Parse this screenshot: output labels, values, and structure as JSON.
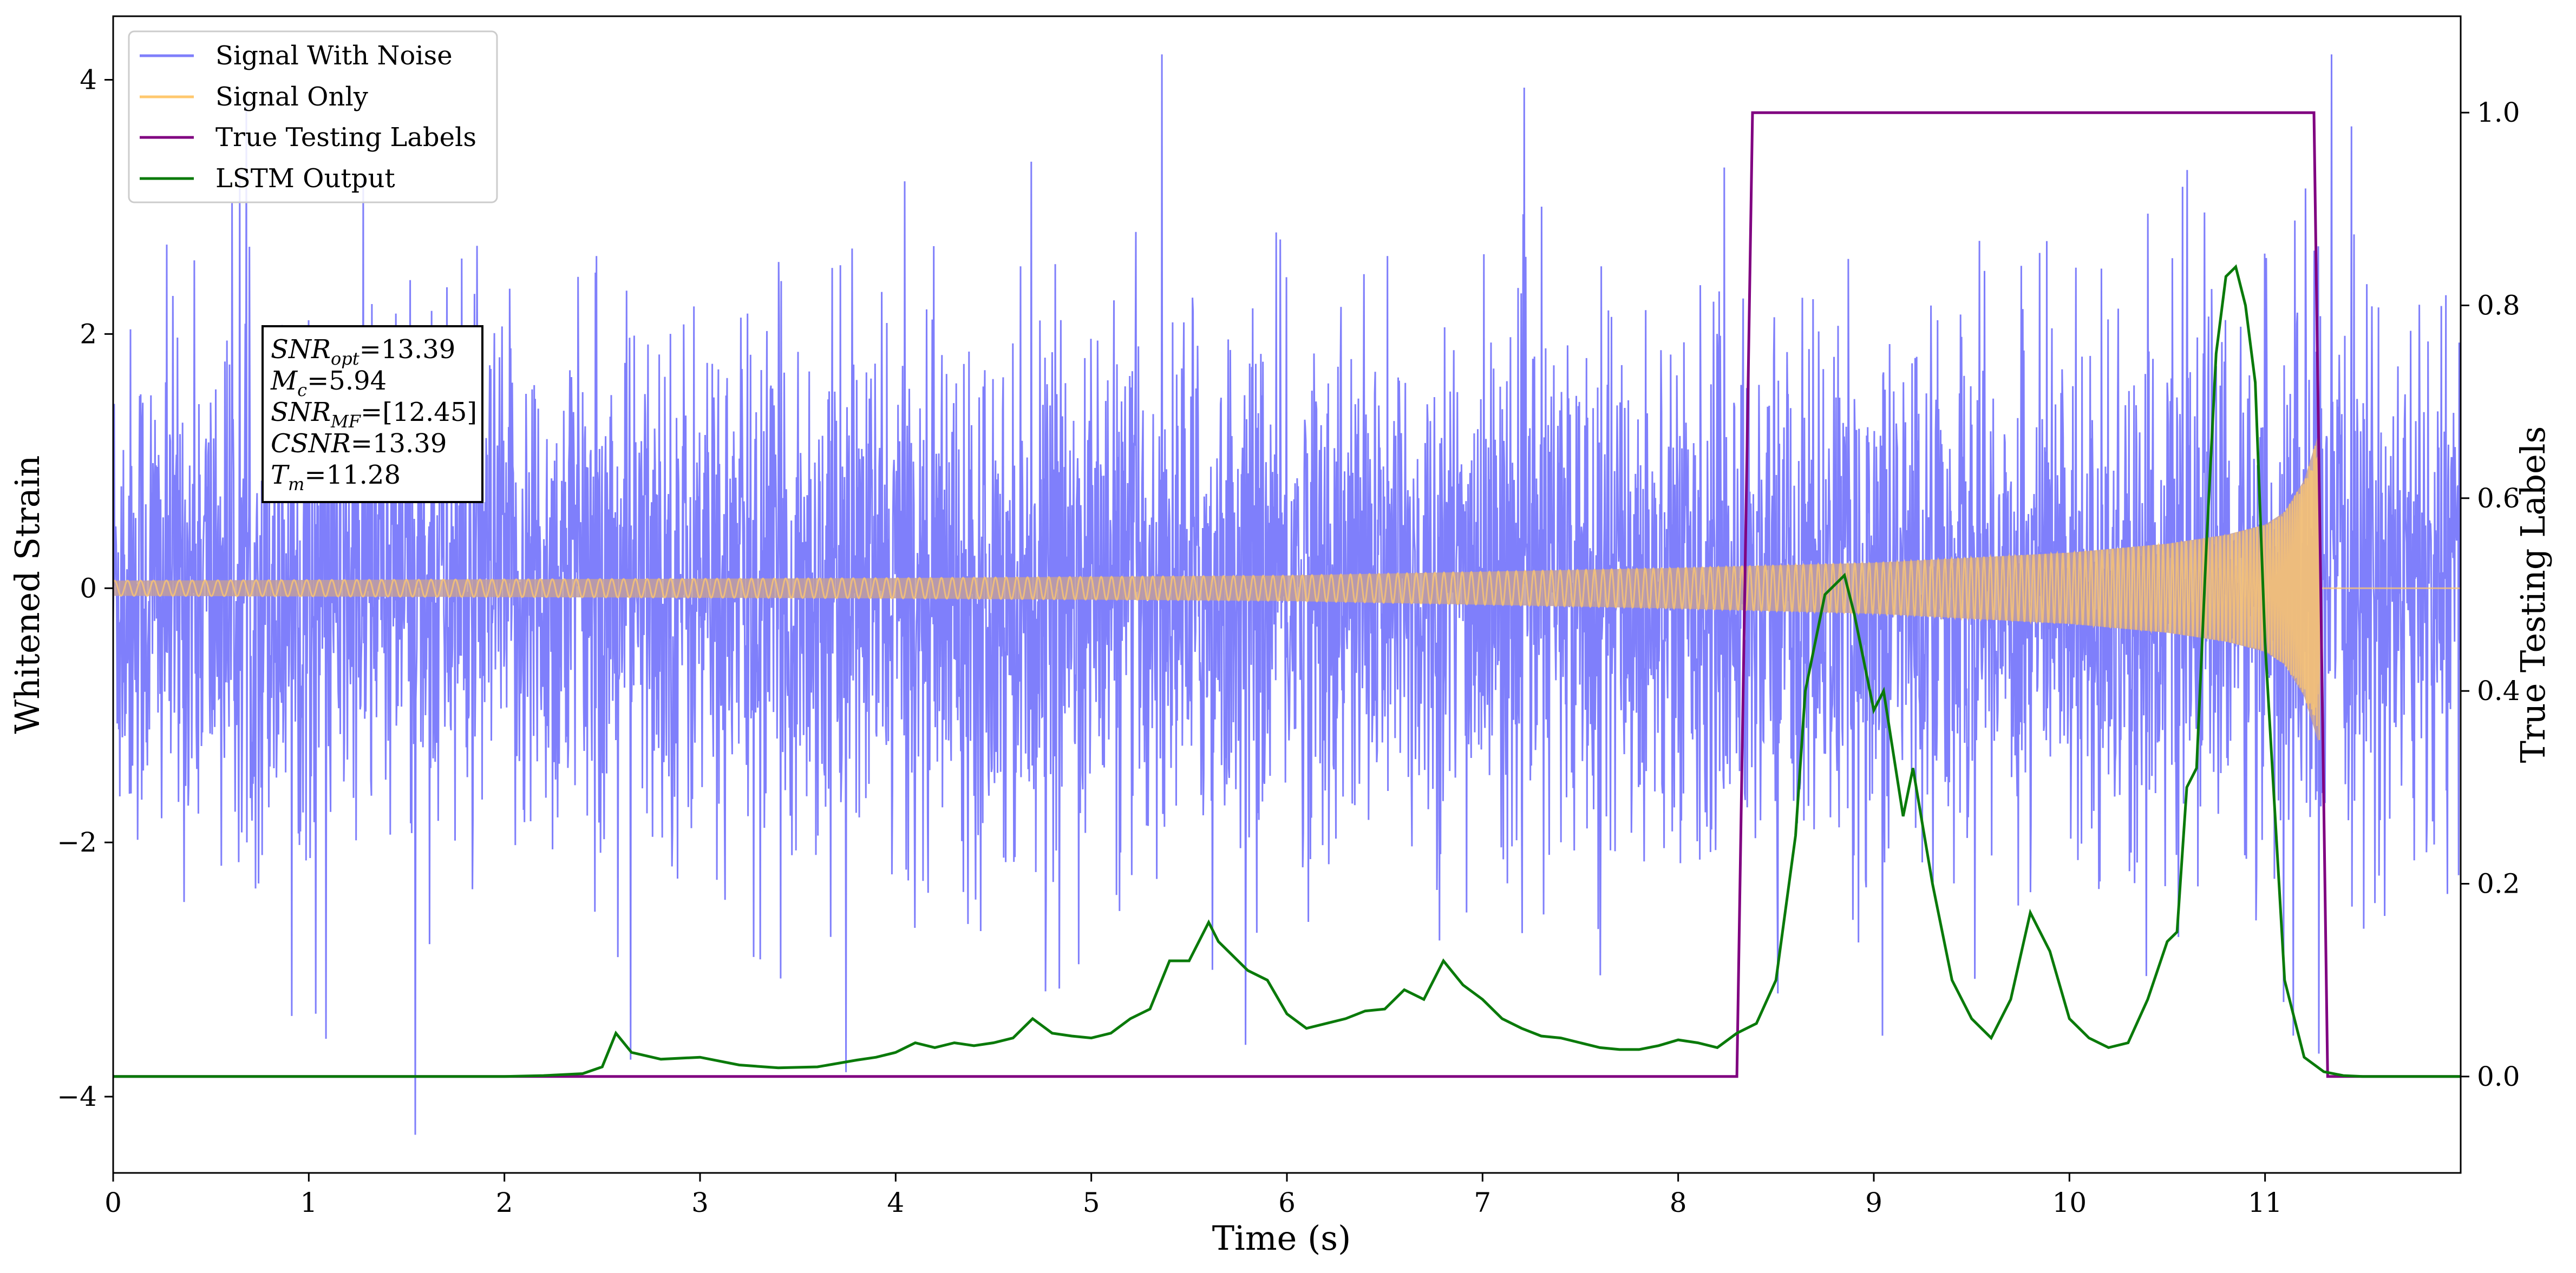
{
  "colors": {
    "signal_with_noise": "#7f7ffb",
    "signal_only": "#ffc86e",
    "overlap": "#c19e9e",
    "true_labels": "#800080",
    "lstm_output": "#0a7a0a"
  },
  "chart_data": {
    "type": "line",
    "title": "",
    "xlabel": "Time (s)",
    "ylabel_left": "Whitened Strain",
    "ylabel_right": "True Testing Labels",
    "xlim": [
      0,
      12
    ],
    "ylim_left": [
      -4.6,
      4.5
    ],
    "ylim_right": [
      -0.1,
      1.1
    ],
    "x_ticks": [
      0,
      1,
      2,
      3,
      4,
      5,
      6,
      7,
      8,
      9,
      10,
      11
    ],
    "x_tick_labels": [
      "0",
      "1",
      "2",
      "3",
      "4",
      "5",
      "6",
      "7",
      "8",
      "9",
      "10",
      "11"
    ],
    "y_left_ticks": [
      -4,
      -2,
      0,
      2,
      4
    ],
    "y_left_tick_labels": [
      "−4",
      "−2",
      "0",
      "2",
      "4"
    ],
    "y_right_ticks": [
      0,
      0.2,
      0.4,
      0.6,
      0.8,
      1.0
    ],
    "y_right_tick_labels": [
      "0.0",
      "0.2",
      "0.4",
      "0.6",
      "0.8",
      "1.0"
    ],
    "grid": false,
    "legend_position": "top-left",
    "legend": [
      "Signal With Noise",
      "Signal Only",
      "True Testing Labels",
      "LSTM Output"
    ],
    "annotation": [
      {
        "base": "SNR",
        "sub": "opt",
        "value": "=13.39"
      },
      {
        "base": "M",
        "sub": "c",
        "value": "=5.94"
      },
      {
        "base": "SNR",
        "sub": "MF",
        "value": "=[12.45]"
      },
      {
        "base": "CSNR",
        "sub": "",
        "value": "=13.39"
      },
      {
        "base": "T",
        "sub": "m",
        "value": "=11.28"
      }
    ],
    "series": [
      {
        "name": "Signal With Noise",
        "axis": "left",
        "style": "dense noise, approx. unit variance, peaks near ±4",
        "noise_envelope_std": 1.0
      },
      {
        "name": "Signal Only",
        "axis": "left",
        "style": "chirp, amplitude grows until merger at t≈11.28 s, then ~0",
        "chirp_envelope": {
          "x": [
            0,
            2,
            4,
            6,
            8,
            9,
            10,
            10.5,
            10.8,
            11.0,
            11.1,
            11.2,
            11.28,
            11.3,
            12
          ],
          "amplitude": [
            0.06,
            0.07,
            0.08,
            0.1,
            0.16,
            0.2,
            0.28,
            0.35,
            0.42,
            0.5,
            0.6,
            0.85,
            1.25,
            0.0,
            0.0
          ]
        }
      },
      {
        "name": "True Testing Labels",
        "axis": "right",
        "x": [
          0,
          8.3,
          8.38,
          11.25,
          11.32,
          12
        ],
        "y": [
          0,
          0,
          1,
          1,
          0,
          0
        ]
      },
      {
        "name": "LSTM Output",
        "axis": "right",
        "x": [
          0,
          0.25,
          0.5,
          1,
          1.5,
          2,
          2.2,
          2.4,
          2.5,
          2.57,
          2.65,
          2.8,
          3.0,
          3.2,
          3.4,
          3.6,
          3.8,
          3.9,
          4.0,
          4.1,
          4.2,
          4.3,
          4.4,
          4.5,
          4.6,
          4.7,
          4.8,
          4.9,
          5.0,
          5.1,
          5.2,
          5.3,
          5.4,
          5.5,
          5.6,
          5.65,
          5.7,
          5.8,
          5.9,
          6.0,
          6.1,
          6.2,
          6.3,
          6.4,
          6.5,
          6.6,
          6.7,
          6.8,
          6.9,
          7.0,
          7.1,
          7.2,
          7.3,
          7.4,
          7.5,
          7.6,
          7.7,
          7.8,
          7.9,
          8.0,
          8.1,
          8.2,
          8.3,
          8.4,
          8.5,
          8.6,
          8.65,
          8.75,
          8.85,
          8.9,
          9.0,
          9.05,
          9.15,
          9.2,
          9.3,
          9.4,
          9.5,
          9.6,
          9.7,
          9.8,
          9.9,
          10.0,
          10.1,
          10.2,
          10.3,
          10.4,
          10.5,
          10.55,
          10.6,
          10.65,
          10.7,
          10.75,
          10.8,
          10.85,
          10.9,
          10.95,
          11.0,
          11.1,
          11.2,
          11.3,
          11.4,
          11.5,
          11.75,
          12.0
        ],
        "y": [
          0,
          0.0,
          0,
          0,
          0,
          0,
          0.001,
          0.003,
          0.01,
          0.045,
          0.025,
          0.018,
          0.02,
          0.012,
          0.009,
          0.01,
          0.017,
          0.02,
          0.025,
          0.035,
          0.03,
          0.035,
          0.032,
          0.035,
          0.04,
          0.06,
          0.045,
          0.042,
          0.04,
          0.045,
          0.06,
          0.07,
          0.12,
          0.12,
          0.16,
          0.14,
          0.13,
          0.11,
          0.1,
          0.065,
          0.05,
          0.055,
          0.06,
          0.068,
          0.07,
          0.09,
          0.08,
          0.12,
          0.095,
          0.08,
          0.06,
          0.05,
          0.042,
          0.04,
          0.035,
          0.03,
          0.028,
          0.028,
          0.032,
          0.038,
          0.035,
          0.03,
          0.045,
          0.055,
          0.1,
          0.25,
          0.4,
          0.5,
          0.52,
          0.48,
          0.38,
          0.4,
          0.27,
          0.32,
          0.2,
          0.1,
          0.06,
          0.04,
          0.08,
          0.17,
          0.13,
          0.06,
          0.04,
          0.03,
          0.035,
          0.08,
          0.14,
          0.15,
          0.3,
          0.32,
          0.55,
          0.75,
          0.83,
          0.84,
          0.8,
          0.72,
          0.45,
          0.1,
          0.02,
          0.005,
          0.001,
          0,
          0,
          0
        ]
      }
    ]
  }
}
